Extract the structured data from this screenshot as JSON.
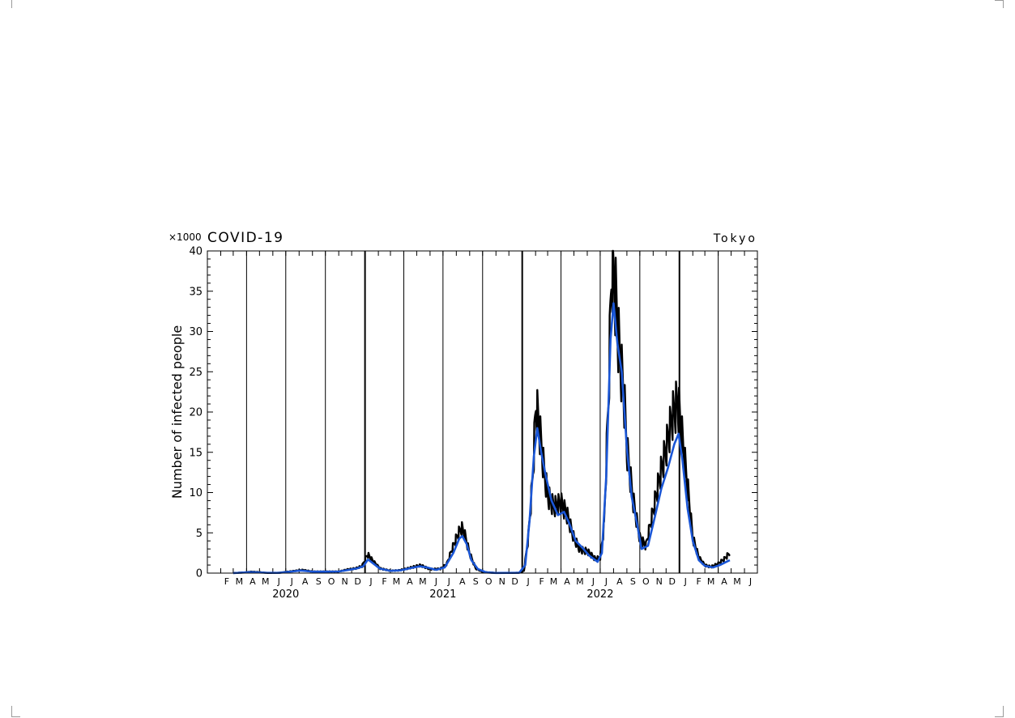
{
  "chart_data": {
    "type": "line",
    "title": "COVID-19",
    "location": "Tokyo",
    "y_multiplier_label": "×1000",
    "ylabel": "Number of infected people",
    "xlabel": "",
    "ylim": [
      0,
      40
    ],
    "y_ticks": [
      "0",
      "5",
      "10",
      "15",
      "20",
      "25",
      "30",
      "35",
      "40"
    ],
    "month_labels": [
      "F",
      "M",
      "A",
      "M",
      "J",
      "J",
      "A",
      "S",
      "O",
      "N",
      "D",
      "J",
      "F",
      "M",
      "A",
      "M",
      "J",
      "J",
      "A",
      "S",
      "O",
      "N",
      "D",
      "J",
      "F",
      "M",
      "A",
      "M",
      "J",
      "J",
      "A",
      "S",
      "O",
      "N",
      "D",
      "J",
      "F",
      "M",
      "A",
      "M",
      "J"
    ],
    "years": [
      "2020",
      "2021",
      "2022"
    ],
    "grid": "monthly vertical lines",
    "series": [
      {
        "kind": "daily",
        "color": "#000000",
        "points": [
          [
            "2020-03-01",
            0.01
          ],
          [
            "2020-04-01",
            0.1
          ],
          [
            "2020-04-10",
            0.18
          ],
          [
            "2020-05-01",
            0.12
          ],
          [
            "2020-05-20",
            0.02
          ],
          [
            "2020-06-15",
            0.04
          ],
          [
            "2020-07-01",
            0.15
          ],
          [
            "2020-08-01",
            0.35
          ],
          [
            "2020-08-10",
            0.4
          ],
          [
            "2020-09-01",
            0.2
          ],
          [
            "2020-10-01",
            0.2
          ],
          [
            "2020-11-01",
            0.2
          ],
          [
            "2020-11-20",
            0.45
          ],
          [
            "2020-12-10",
            0.6
          ],
          [
            "2020-12-25",
            0.9
          ],
          [
            "2021-01-07",
            2.4
          ],
          [
            "2021-01-20",
            1.5
          ],
          [
            "2021-02-05",
            0.6
          ],
          [
            "2021-03-01",
            0.3
          ],
          [
            "2021-03-20",
            0.35
          ],
          [
            "2021-04-10",
            0.6
          ],
          [
            "2021-05-01",
            0.9
          ],
          [
            "2021-05-10",
            1.0
          ],
          [
            "2021-06-01",
            0.5
          ],
          [
            "2021-06-25",
            0.55
          ],
          [
            "2021-07-10",
            1.2
          ],
          [
            "2021-07-25",
            3.5
          ],
          [
            "2021-08-05",
            5.0
          ],
          [
            "2021-08-13",
            5.8
          ],
          [
            "2021-08-20",
            5.0
          ],
          [
            "2021-09-01",
            2.5
          ],
          [
            "2021-09-15",
            0.6
          ],
          [
            "2021-10-01",
            0.15
          ],
          [
            "2021-11-01",
            0.02
          ],
          [
            "2021-12-01",
            0.02
          ],
          [
            "2021-12-25",
            0.05
          ],
          [
            "2022-01-05",
            0.3
          ],
          [
            "2022-01-15",
            4.5
          ],
          [
            "2022-01-25",
            12.0
          ],
          [
            "2022-02-02",
            21.6
          ],
          [
            "2022-02-10",
            18.5
          ],
          [
            "2022-02-20",
            13.5
          ],
          [
            "2022-03-01",
            10.0
          ],
          [
            "2022-03-15",
            8.5
          ],
          [
            "2022-04-01",
            9.0
          ],
          [
            "2022-04-15",
            7.5
          ],
          [
            "2022-05-01",
            4.5
          ],
          [
            "2022-05-15",
            3.0
          ],
          [
            "2022-06-01",
            2.8
          ],
          [
            "2022-06-20",
            1.8
          ],
          [
            "2022-07-01",
            2.0
          ],
          [
            "2022-07-10",
            6.0
          ],
          [
            "2022-07-20",
            22.0
          ],
          [
            "2022-07-28",
            40.0
          ],
          [
            "2022-08-05",
            36.0
          ],
          [
            "2022-08-15",
            28.0
          ],
          [
            "2022-08-25",
            23.0
          ],
          [
            "2022-09-01",
            16.0
          ],
          [
            "2022-09-15",
            9.5
          ],
          [
            "2022-10-01",
            4.5
          ],
          [
            "2022-10-15",
            3.5
          ],
          [
            "2022-11-01",
            8.0
          ],
          [
            "2022-11-15",
            12.0
          ],
          [
            "2022-12-01",
            16.0
          ],
          [
            "2022-12-15",
            20.0
          ],
          [
            "2022-12-28",
            22.0
          ],
          [
            "2023-01-05",
            18.5
          ],
          [
            "2023-01-20",
            11.0
          ],
          [
            "2023-02-01",
            4.5
          ],
          [
            "2023-02-15",
            2.0
          ],
          [
            "2023-03-01",
            1.0
          ],
          [
            "2023-03-15",
            0.8
          ],
          [
            "2023-04-01",
            1.2
          ],
          [
            "2023-04-15",
            1.8
          ],
          [
            "2023-04-28",
            2.6
          ]
        ]
      },
      {
        "kind": "7-day average",
        "color": "#1a56d6",
        "points": [
          [
            "2020-03-01",
            0.0
          ],
          [
            "2020-04-10",
            0.12
          ],
          [
            "2020-05-15",
            0.05
          ],
          [
            "2020-06-15",
            0.03
          ],
          [
            "2020-07-15",
            0.2
          ],
          [
            "2020-08-05",
            0.32
          ],
          [
            "2020-09-01",
            0.18
          ],
          [
            "2020-10-01",
            0.18
          ],
          [
            "2020-11-01",
            0.2
          ],
          [
            "2020-11-25",
            0.4
          ],
          [
            "2020-12-15",
            0.6
          ],
          [
            "2020-12-28",
            0.85
          ],
          [
            "2021-01-08",
            1.7
          ],
          [
            "2021-01-20",
            1.2
          ],
          [
            "2021-02-05",
            0.55
          ],
          [
            "2021-03-01",
            0.28
          ],
          [
            "2021-03-25",
            0.35
          ],
          [
            "2021-04-20",
            0.65
          ],
          [
            "2021-05-08",
            0.85
          ],
          [
            "2021-05-25",
            0.7
          ],
          [
            "2021-06-15",
            0.4
          ],
          [
            "2021-07-05",
            0.7
          ],
          [
            "2021-07-25",
            2.5
          ],
          [
            "2021-08-08",
            4.3
          ],
          [
            "2021-08-15",
            4.6
          ],
          [
            "2021-08-25",
            3.6
          ],
          [
            "2021-09-05",
            1.6
          ],
          [
            "2021-09-20",
            0.5
          ],
          [
            "2021-10-10",
            0.08
          ],
          [
            "2021-11-01",
            0.02
          ],
          [
            "2021-12-25",
            0.04
          ],
          [
            "2022-01-08",
            1.0
          ],
          [
            "2022-01-18",
            6.5
          ],
          [
            "2022-01-28",
            14.5
          ],
          [
            "2022-02-05",
            18.0
          ],
          [
            "2022-02-14",
            15.0
          ],
          [
            "2022-02-25",
            12.0
          ],
          [
            "2022-03-10",
            9.0
          ],
          [
            "2022-03-25",
            7.2
          ],
          [
            "2022-04-08",
            7.6
          ],
          [
            "2022-04-20",
            6.2
          ],
          [
            "2022-05-05",
            4.0
          ],
          [
            "2022-05-20",
            3.2
          ],
          [
            "2022-06-05",
            2.2
          ],
          [
            "2022-06-25",
            1.4
          ],
          [
            "2022-07-05",
            2.5
          ],
          [
            "2022-07-15",
            12.0
          ],
          [
            "2022-07-25",
            29.0
          ],
          [
            "2022-08-01",
            33.5
          ],
          [
            "2022-08-10",
            28.5
          ],
          [
            "2022-08-20",
            25.0
          ],
          [
            "2022-09-01",
            15.5
          ],
          [
            "2022-09-12",
            9.5
          ],
          [
            "2022-09-25",
            6.0
          ],
          [
            "2022-10-05",
            3.0
          ],
          [
            "2022-10-20",
            3.4
          ],
          [
            "2022-11-05",
            7.0
          ],
          [
            "2022-11-20",
            10.5
          ],
          [
            "2022-12-05",
            13.0
          ],
          [
            "2022-12-20",
            16.0
          ],
          [
            "2022-12-30",
            17.3
          ],
          [
            "2023-01-08",
            14.0
          ],
          [
            "2023-01-20",
            8.0
          ],
          [
            "2023-02-01",
            4.0
          ],
          [
            "2023-02-15",
            1.6
          ],
          [
            "2023-03-01",
            0.9
          ],
          [
            "2023-03-20",
            0.7
          ],
          [
            "2023-04-05",
            1.0
          ],
          [
            "2023-04-20",
            1.4
          ],
          [
            "2023-04-28",
            1.6
          ]
        ]
      }
    ]
  }
}
